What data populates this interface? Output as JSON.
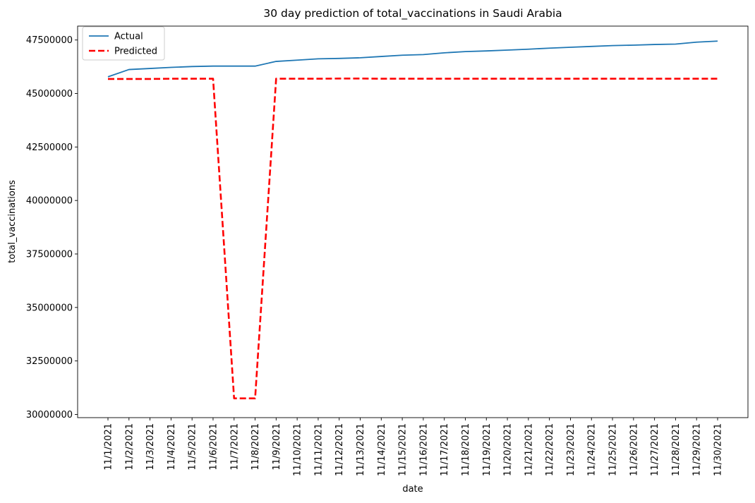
{
  "chart_data": {
    "type": "line",
    "title": "30 day prediction of total_vaccinations in Saudi Arabia",
    "xlabel": "date",
    "ylabel": "total_vaccinations",
    "categories": [
      "11/1/2021",
      "11/2/2021",
      "11/3/2021",
      "11/4/2021",
      "11/5/2021",
      "11/6/2021",
      "11/7/2021",
      "11/8/2021",
      "11/9/2021",
      "11/10/2021",
      "11/11/2021",
      "11/12/2021",
      "11/13/2021",
      "11/14/2021",
      "11/15/2021",
      "11/16/2021",
      "11/17/2021",
      "11/18/2021",
      "11/19/2021",
      "11/20/2021",
      "11/21/2021",
      "11/22/2021",
      "11/23/2021",
      "11/24/2021",
      "11/25/2021",
      "11/26/2021",
      "11/27/2021",
      "11/28/2021",
      "11/29/2021",
      "11/30/2021"
    ],
    "ylim": [
      29850000,
      48150000
    ],
    "yticks": [
      30000000,
      32500000,
      35000000,
      37500000,
      40000000,
      42500000,
      45000000,
      47500000
    ],
    "ytick_labels": [
      "30000000",
      "32500000",
      "35000000",
      "37500000",
      "40000000",
      "42500000",
      "45000000",
      "47500000"
    ],
    "grid": false,
    "legend_position": "top-left",
    "series": [
      {
        "name": "Actual",
        "color": "#1f77b4",
        "style": "solid",
        "values": [
          45780000,
          46120000,
          46170000,
          46220000,
          46260000,
          46280000,
          46280000,
          46280000,
          46500000,
          46560000,
          46620000,
          46640000,
          46670000,
          46730000,
          46790000,
          46820000,
          46900000,
          46960000,
          46990000,
          47030000,
          47070000,
          47120000,
          47160000,
          47200000,
          47240000,
          47260000,
          47290000,
          47310000,
          47400000,
          47450000
        ]
      },
      {
        "name": "Predicted",
        "color": "#ff0000",
        "style": "dashed",
        "values": [
          45680000,
          45680000,
          45680000,
          45690000,
          45690000,
          45690000,
          30750000,
          30750000,
          45690000,
          45690000,
          45690000,
          45700000,
          45700000,
          45690000,
          45690000,
          45690000,
          45690000,
          45690000,
          45690000,
          45690000,
          45690000,
          45690000,
          45690000,
          45690000,
          45690000,
          45690000,
          45690000,
          45690000,
          45690000,
          45690000
        ]
      }
    ]
  }
}
